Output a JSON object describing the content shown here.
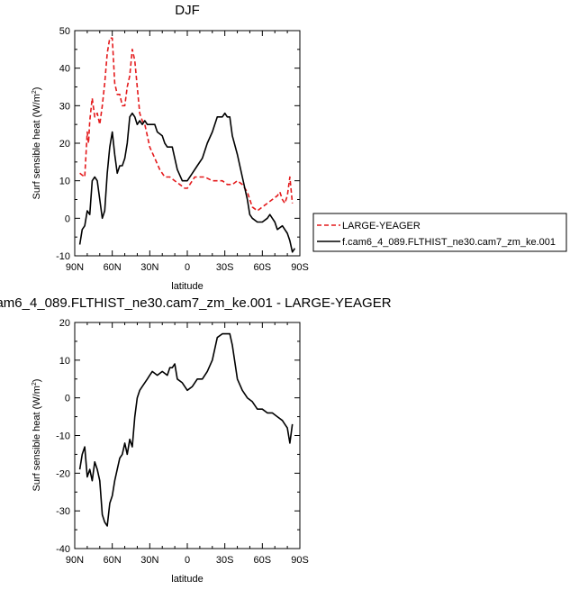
{
  "chart_data": [
    {
      "type": "line",
      "title": "DJF",
      "xlabel": "latitude",
      "ylabel": "Surf sensible heat (W/m",
      "ylabel_sup": "2",
      "ylabel_close": ")",
      "xlim": [
        90,
        -90
      ],
      "ylim": [
        -10,
        50
      ],
      "xticks": [
        90,
        60,
        30,
        0,
        -30,
        -60,
        -90
      ],
      "xtick_labels": [
        "90N",
        "60N",
        "30N",
        "0",
        "30S",
        "60S",
        "90S"
      ],
      "yticks": [
        -10,
        0,
        10,
        20,
        30,
        40,
        50
      ],
      "ytick_labels": [
        "-10",
        "0",
        "10",
        "20",
        "30",
        "40",
        "50"
      ],
      "legend_position": "right, outside plot",
      "series": [
        {
          "name": "LARGE-YEAGER",
          "color": "#e41a1c",
          "dash": "dashed",
          "x": [
            86,
            82,
            80,
            79,
            78,
            76,
            74,
            72,
            70,
            68,
            66,
            64,
            62,
            60,
            58,
            56,
            54,
            52,
            50,
            48,
            46,
            44,
            42,
            40,
            38,
            36,
            34,
            32,
            30,
            26,
            22,
            18,
            14,
            10,
            6,
            2,
            0,
            -2,
            -6,
            -10,
            -14,
            -20,
            -24,
            -28,
            -32,
            -36,
            -40,
            -44,
            -48,
            -50,
            -52,
            -56,
            -60,
            -64,
            -68,
            -72,
            -74,
            -76,
            -78,
            -80,
            -82,
            -84
          ],
          "y": [
            12,
            11,
            23,
            20,
            26,
            32,
            27,
            28,
            25,
            30,
            36,
            44,
            48,
            48,
            36,
            33,
            33,
            30,
            30,
            35,
            38,
            45,
            42,
            35,
            28,
            26,
            25,
            22,
            19,
            16,
            13,
            11,
            11,
            10,
            9,
            8,
            8,
            9,
            11,
            11,
            11,
            10,
            10,
            10,
            9,
            9,
            10,
            9,
            7,
            5,
            3,
            2,
            3,
            4,
            5,
            6,
            7,
            5,
            4,
            6,
            11,
            4
          ]
        },
        {
          "name": "f.cam6_4_089.FLTHIST_ne30.cam7_zm_ke.001",
          "color": "#000000",
          "dash": "solid",
          "x": [
            86,
            84,
            82,
            80,
            78,
            76,
            74,
            72,
            70,
            68,
            66,
            64,
            62,
            60,
            58,
            56,
            54,
            52,
            50,
            48,
            46,
            44,
            42,
            40,
            38,
            36,
            34,
            32,
            30,
            26,
            24,
            20,
            18,
            16,
            12,
            10,
            8,
            4,
            0,
            -4,
            -8,
            -12,
            -16,
            -20,
            -24,
            -28,
            -30,
            -32,
            -34,
            -36,
            -40,
            -44,
            -48,
            -50,
            -52,
            -56,
            -60,
            -64,
            -66,
            -68,
            -70,
            -72,
            -76,
            -80,
            -82,
            -84,
            -86
          ],
          "y": [
            -7,
            -3,
            -2,
            2,
            1,
            10,
            11,
            10,
            5,
            0,
            2,
            12,
            19,
            23,
            17,
            12,
            14,
            14,
            16,
            20,
            27,
            28,
            27,
            25,
            26,
            25,
            26,
            25,
            25,
            25,
            23,
            22,
            20,
            19,
            19,
            16,
            13,
            10,
            10,
            12,
            14,
            16,
            20,
            23,
            27,
            27,
            28,
            27,
            27,
            22,
            17,
            11,
            5,
            1,
            0,
            -1,
            -1,
            0,
            1,
            0,
            -1,
            -3,
            -2,
            -4,
            -6,
            -9,
            -8
          ]
        }
      ]
    },
    {
      "type": "line",
      "title": "am6_4_089.FLTHIST_ne30.cam7_zm_ke.001 - LARGE-YEAGER",
      "xlabel": "latitude",
      "ylabel": "Surf sensible heat (W/m",
      "ylabel_sup": "2",
      "ylabel_close": ")",
      "xlim": [
        90,
        -90
      ],
      "ylim": [
        -40,
        20
      ],
      "xticks": [
        90,
        60,
        30,
        0,
        -30,
        -60,
        -90
      ],
      "xtick_labels": [
        "90N",
        "60N",
        "30N",
        "0",
        "30S",
        "60S",
        "90S"
      ],
      "yticks": [
        -40,
        -30,
        -20,
        -10,
        0,
        10,
        20
      ],
      "ytick_labels": [
        "-40",
        "-30",
        "-20",
        "-10",
        "0",
        "10",
        "20"
      ],
      "series": [
        {
          "color": "#000000",
          "dash": "solid",
          "x": [
            86,
            84,
            82,
            80,
            78,
            76,
            74,
            72,
            70,
            68,
            66,
            64,
            62,
            60,
            58,
            56,
            54,
            52,
            50,
            48,
            46,
            44,
            42,
            40,
            38,
            36,
            34,
            32,
            30,
            28,
            24,
            20,
            16,
            14,
            12,
            10,
            8,
            4,
            0,
            -4,
            -8,
            -12,
            -16,
            -20,
            -24,
            -28,
            -30,
            -32,
            -34,
            -36,
            -40,
            -44,
            -48,
            -52,
            -56,
            -60,
            -64,
            -68,
            -72,
            -76,
            -78,
            -80,
            -82,
            -84
          ],
          "y": [
            -19,
            -15,
            -13,
            -21,
            -19,
            -22,
            -17,
            -19,
            -22,
            -31,
            -33,
            -34,
            -28,
            -26,
            -22,
            -19,
            -16,
            -15,
            -12,
            -15,
            -11,
            -13,
            -5,
            0,
            2,
            3,
            4,
            5,
            6,
            7,
            6,
            7,
            6,
            8,
            8,
            9,
            5,
            4,
            2,
            3,
            5,
            5,
            7,
            10,
            16,
            17,
            17,
            17,
            17,
            14,
            5,
            2,
            0,
            -1,
            -3,
            -3,
            -4,
            -4,
            -5,
            -6,
            -7,
            -8,
            -12,
            -7
          ]
        }
      ]
    }
  ]
}
